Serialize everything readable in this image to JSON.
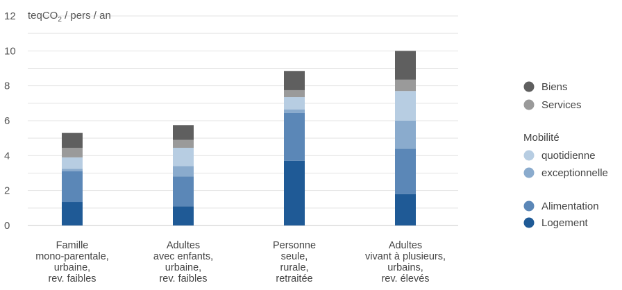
{
  "chart_data": {
    "type": "bar",
    "stacked": true,
    "unit_label": {
      "main": "teqCO",
      "sub": "2",
      "tail": " / pers / an"
    },
    "ylim": [
      0,
      12
    ],
    "yticks": [
      "0",
      "2",
      "4",
      "6",
      "8",
      "10",
      "12"
    ],
    "grid": true,
    "legend_position": "right",
    "legend_group_heading": "Mobilité",
    "categories": [
      [
        "Famille",
        "mono-parentale,",
        "urbaine,",
        "rev. faibles"
      ],
      [
        "Adultes",
        "avec enfants,",
        "urbaine,",
        "rev. faibles"
      ],
      [
        "Personne",
        "seule,",
        "rurale,",
        "retraitée"
      ],
      [
        "Adultes",
        "vivant à plusieurs,",
        "urbains,",
        "rev. élevés"
      ]
    ],
    "series": [
      {
        "name": "Logement",
        "color": "#1f5a96",
        "values": [
          1.35,
          1.1,
          3.7,
          1.8
        ]
      },
      {
        "name": "Alimentation",
        "color": "#5b87b7",
        "values": [
          1.75,
          1.7,
          2.75,
          2.6
        ]
      },
      {
        "name": "exceptionnelle",
        "color": "#8aabcd",
        "values": [
          0.15,
          0.6,
          0.2,
          1.6
        ]
      },
      {
        "name": "quotidienne",
        "color": "#b7cde2",
        "values": [
          0.65,
          1.05,
          0.7,
          1.7
        ]
      },
      {
        "name": "Services",
        "color": "#9a9a9a",
        "values": [
          0.55,
          0.45,
          0.4,
          0.65
        ]
      },
      {
        "name": "Biens",
        "color": "#5f5f5f",
        "values": [
          0.85,
          0.85,
          1.1,
          1.65
        ]
      }
    ],
    "legend_order": [
      "Biens",
      "Services",
      "quotidienne",
      "exceptionnelle",
      "Alimentation",
      "Logement"
    ]
  }
}
